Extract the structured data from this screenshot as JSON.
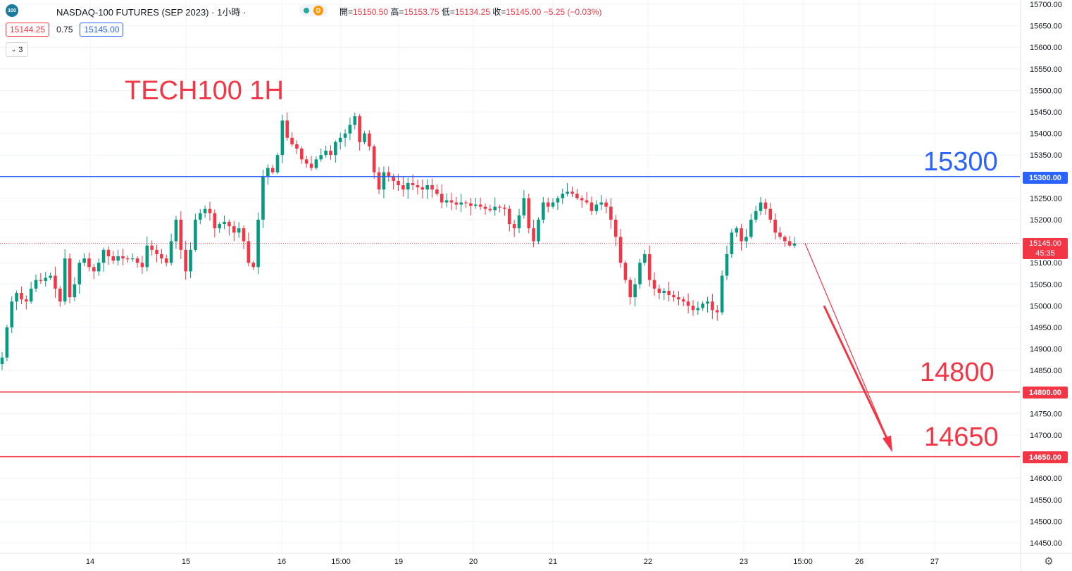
{
  "header": {
    "logo_text": "100",
    "symbol": "NASDAQ-100 FUTURES (SEP 2023)",
    "separator": "·",
    "interval": "1小時",
    "separator2": "·",
    "status_letter": "D",
    "status_dot_color": "#22ab94",
    "open_label": "開=",
    "open": "15150.50",
    "high_label": "高=",
    "high": "15153.75",
    "low_label": "低=",
    "low": "15134.25",
    "close_label": "收=",
    "close": "15145.00",
    "change": "−5.25 (−0.03%)"
  },
  "trade": {
    "sell": "15144.25",
    "spread": "0.75",
    "buy": "15145.00"
  },
  "indicators_toggle": {
    "count": "3"
  },
  "annotations": {
    "title": "TECH100 1H",
    "level_15300": "15300",
    "level_14800": "14800",
    "level_14650": "14650"
  },
  "price_labels": {
    "l15300": "15300.00",
    "l14800": "14800.00",
    "l14650": "14650.00",
    "current": "15145.00",
    "countdown": "45:35"
  },
  "colors": {
    "up": "#089981",
    "down": "#f23645",
    "blue": "#2962ff",
    "red": "#f23645"
  },
  "chart_data": {
    "type": "candlestick",
    "title": "TECH100 1H",
    "ylim": [
      14430,
      15710
    ],
    "y_ticks": [
      14450,
      14500,
      14550,
      14600,
      14650,
      14700,
      14750,
      14800,
      14850,
      14900,
      14950,
      15000,
      15050,
      15100,
      15150,
      15200,
      15250,
      15300,
      15350,
      15400,
      15450,
      15500,
      15550,
      15600,
      15650,
      15700
    ],
    "x_tick_labels": [
      "14",
      "15",
      "16",
      "15:00",
      "19",
      "20",
      "21",
      "22",
      "23",
      "15:00",
      "26",
      "27"
    ],
    "horizontal_lines": [
      {
        "value": 15300,
        "color": "#2962ff"
      },
      {
        "value": 14800,
        "color": "#f23645"
      },
      {
        "value": 14650,
        "color": "#f23645"
      }
    ],
    "current_price": 15145,
    "forecast_arrow": {
      "from": 15145,
      "to": 14660
    },
    "closes": [
      14880,
      14950,
      15010,
      15030,
      15015,
      15010,
      15040,
      15060,
      15058,
      15065,
      15070,
      15040,
      15010,
      15110,
      15020,
      15050,
      15100,
      15110,
      15090,
      15080,
      15100,
      15130,
      15115,
      15105,
      15115,
      15110,
      15108,
      15110,
      15100,
      15090,
      15140,
      15130,
      15120,
      15110,
      15100,
      15150,
      15200,
      15130,
      15080,
      15130,
      15200,
      15215,
      15225,
      15215,
      15180,
      15190,
      15195,
      15185,
      15170,
      15180,
      15150,
      15100,
      15090,
      15200,
      15300,
      15320,
      15310,
      15350,
      15430,
      15390,
      15375,
      15365,
      15340,
      15330,
      15320,
      15340,
      15350,
      15360,
      15350,
      15380,
      15390,
      15400,
      15420,
      15440,
      15380,
      15400,
      15370,
      15310,
      15270,
      15310,
      15300,
      15290,
      15280,
      15270,
      15285,
      15280,
      15275,
      15270,
      15280,
      15270,
      15260,
      15240,
      15245,
      15240,
      15235,
      15240,
      15238,
      15232,
      15235,
      15230,
      15225,
      15222,
      15230,
      15228,
      15225,
      15190,
      15180,
      15210,
      15250,
      15180,
      15150,
      15200,
      15240,
      15230,
      15240,
      15250,
      15260,
      15265,
      15260,
      15250,
      15245,
      15240,
      15220,
      15235,
      15240,
      15230,
      15200,
      15160,
      15100,
      15060,
      15020,
      15050,
      15100,
      15120,
      15060,
      15040,
      15030,
      15035,
      15025,
      15020,
      15015,
      15010,
      15000,
      14990,
      14995,
      15005,
      15010,
      14990,
      14985,
      15070,
      15120,
      15170,
      15180,
      15150,
      15160,
      15200,
      15220,
      15240,
      15225,
      15200,
      15170,
      15160,
      15150,
      15140,
      15145
    ]
  }
}
